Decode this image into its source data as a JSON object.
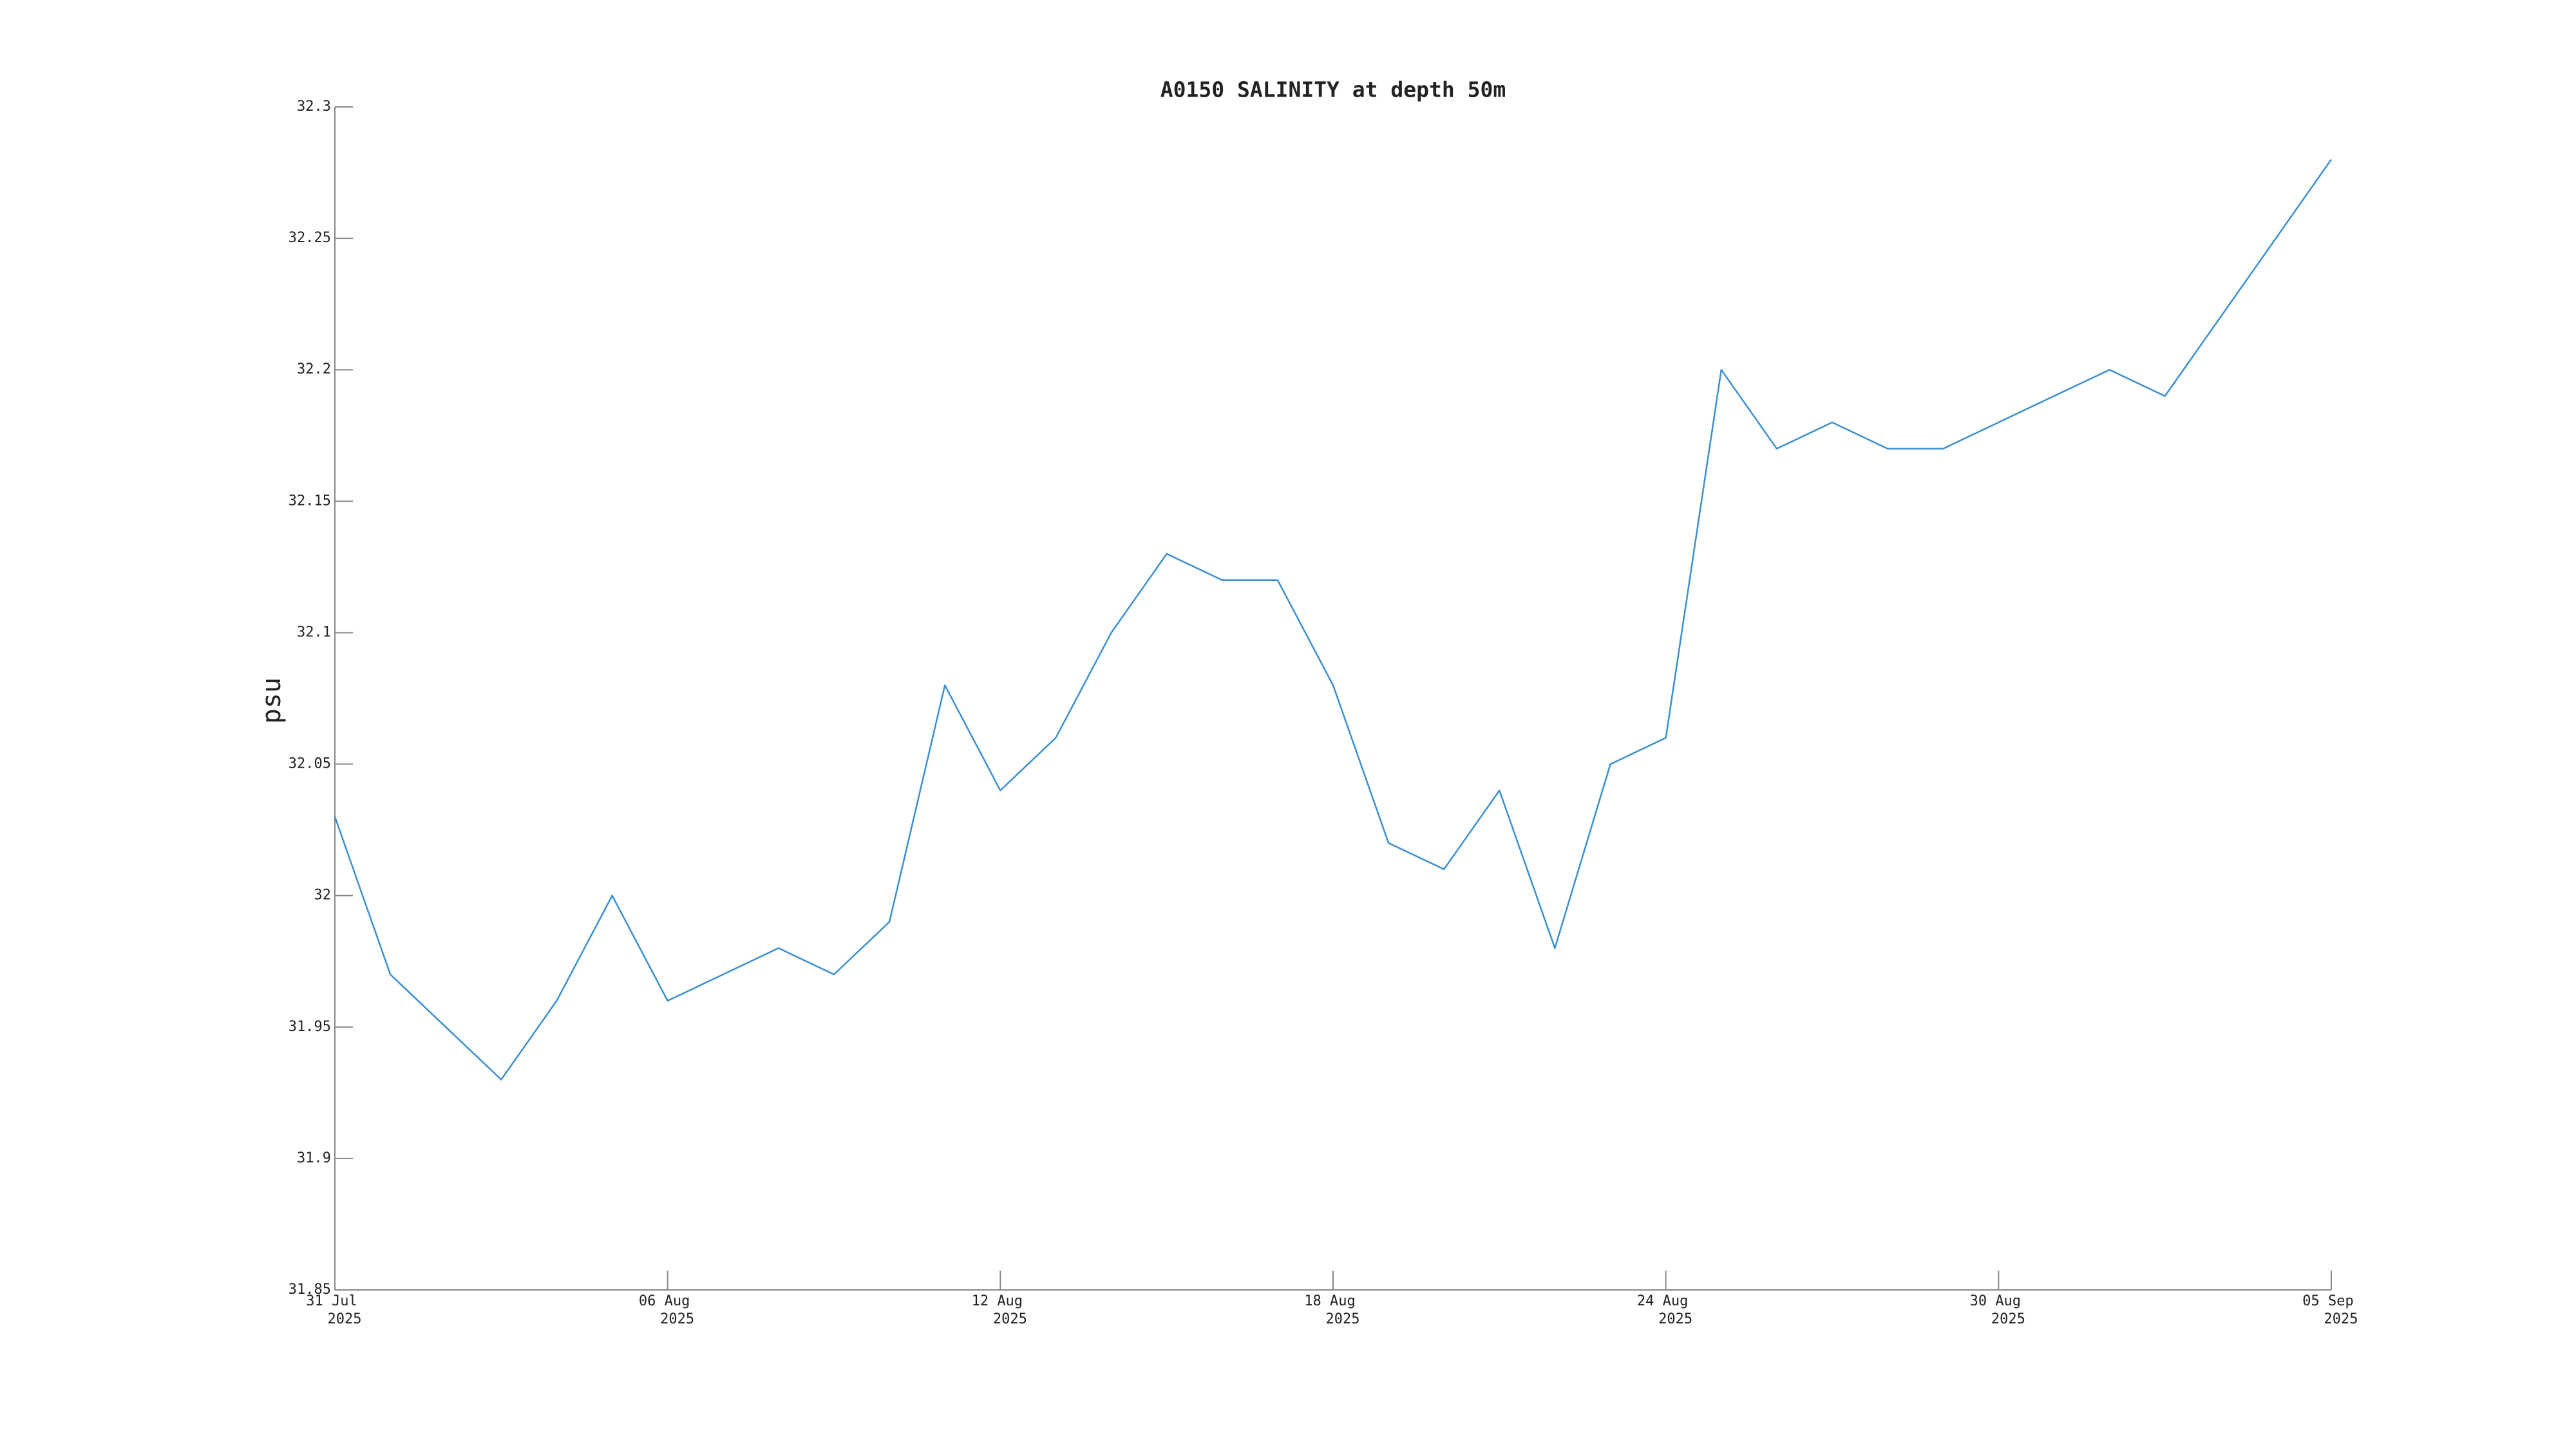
{
  "chart_data": {
    "type": "line",
    "title": "A0150 SALINITY at depth 50m",
    "y_label": "psu",
    "color": "#3b8fd0",
    "x": [
      "2025-07-31",
      "2025-08-01",
      "2025-08-02",
      "2025-08-03",
      "2025-08-04",
      "2025-08-05",
      "2025-08-06",
      "2025-08-07",
      "2025-08-08",
      "2025-08-09",
      "2025-08-10",
      "2025-08-11",
      "2025-08-12",
      "2025-08-13",
      "2025-08-14",
      "2025-08-15",
      "2025-08-16",
      "2025-08-17",
      "2025-08-18",
      "2025-08-19",
      "2025-08-20",
      "2025-08-21",
      "2025-08-22",
      "2025-08-23",
      "2025-08-24",
      "2025-08-25",
      "2025-08-26",
      "2025-08-27",
      "2025-08-28",
      "2025-08-29",
      "2025-08-30",
      "2025-08-31",
      "2025-09-01",
      "2025-09-02",
      "2025-09-03",
      "2025-09-04",
      "2025-09-05"
    ],
    "values": [
      32.03,
      31.97,
      31.95,
      31.93,
      31.96,
      32.0,
      31.96,
      31.97,
      31.98,
      31.97,
      31.99,
      32.08,
      32.04,
      32.06,
      32.1,
      32.13,
      32.12,
      32.12,
      32.08,
      32.02,
      32.01,
      32.04,
      31.98,
      32.05,
      32.06,
      32.2,
      32.17,
      32.18,
      32.17,
      32.17,
      32.18,
      32.19,
      32.2,
      32.19,
      32.22,
      32.25,
      32.28
    ],
    "xlim": [
      "2025-07-31",
      "2025-09-05"
    ],
    "xticks": [
      {
        "value": "2025-07-31",
        "label": [
          "31 Jul",
          "2025"
        ]
      },
      {
        "value": "2025-08-06",
        "label": [
          "06 Aug",
          "2025"
        ]
      },
      {
        "value": "2025-08-12",
        "label": [
          "12 Aug",
          "2025"
        ]
      },
      {
        "value": "2025-08-18",
        "label": [
          "18 Aug",
          "2025"
        ]
      },
      {
        "value": "2025-08-24",
        "label": [
          "24 Aug",
          "2025"
        ]
      },
      {
        "value": "2025-08-30",
        "label": [
          "30 Aug",
          "2025"
        ]
      },
      {
        "value": "2025-09-05",
        "label": [
          "05 Sep",
          "2025"
        ]
      }
    ],
    "ylim": [
      31.85,
      32.3
    ],
    "yticks": [
      31.85,
      31.9,
      31.95,
      32,
      32.05,
      32.1,
      32.15,
      32.2,
      32.25,
      32.3
    ],
    "grid": false
  }
}
